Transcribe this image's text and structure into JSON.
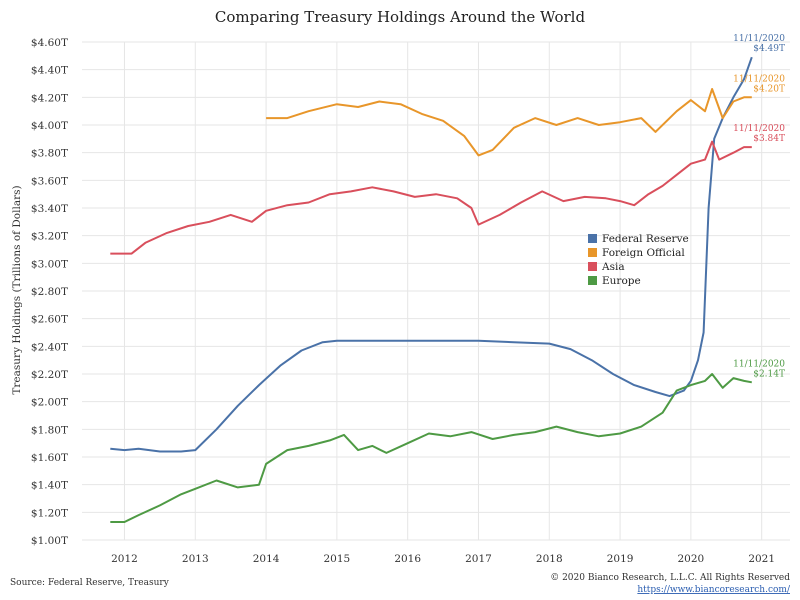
{
  "source": "Source: Federal Reserve, Treasury",
  "copyright": "© 2020 Bianco Research, L.L.C. All Rights Reserved",
  "link": "https://www.biancoresearch.com/",
  "chart_data": {
    "type": "line",
    "title": "Comparing Treasury Holdings Around the World",
    "xlabel": "",
    "ylabel": "Treasury Holdings (Trillions of Dollars)",
    "xlim": [
      2011.4,
      2021.4
    ],
    "ylim": [
      1.0,
      4.6
    ],
    "x_ticks": [
      2012,
      2013,
      2014,
      2015,
      2016,
      2017,
      2018,
      2019,
      2020,
      2021
    ],
    "y_ticks": [
      1.0,
      1.2,
      1.4,
      1.6,
      1.8,
      2.0,
      2.2,
      2.4,
      2.6,
      2.8,
      3.0,
      3.2,
      3.4,
      3.6,
      3.8,
      4.0,
      4.2,
      4.4,
      4.6
    ],
    "y_tick_labels": [
      "$1.00T",
      "$1.20T",
      "$1.40T",
      "$1.60T",
      "$1.80T",
      "$2.00T",
      "$2.20T",
      "$2.40T",
      "$2.60T",
      "$2.80T",
      "$3.00T",
      "$3.20T",
      "$3.40T",
      "$3.60T",
      "$3.80T",
      "$4.00T",
      "$4.20T",
      "$4.40T",
      "$4.60T"
    ],
    "grid": true,
    "legend_position": "center-right",
    "series": [
      {
        "name": "Federal Reserve",
        "color": "#4a72a8",
        "end_date": "11/11/2020",
        "end_label": "$4.49T",
        "points": [
          [
            2011.8,
            1.66
          ],
          [
            2012.0,
            1.65
          ],
          [
            2012.2,
            1.66
          ],
          [
            2012.5,
            1.64
          ],
          [
            2012.8,
            1.64
          ],
          [
            2013.0,
            1.65
          ],
          [
            2013.3,
            1.8
          ],
          [
            2013.6,
            1.97
          ],
          [
            2013.9,
            2.12
          ],
          [
            2014.2,
            2.26
          ],
          [
            2014.5,
            2.37
          ],
          [
            2014.8,
            2.43
          ],
          [
            2015.0,
            2.44
          ],
          [
            2015.5,
            2.44
          ],
          [
            2016.0,
            2.44
          ],
          [
            2016.5,
            2.44
          ],
          [
            2017.0,
            2.44
          ],
          [
            2017.5,
            2.43
          ],
          [
            2018.0,
            2.42
          ],
          [
            2018.3,
            2.38
          ],
          [
            2018.6,
            2.3
          ],
          [
            2018.9,
            2.2
          ],
          [
            2019.2,
            2.12
          ],
          [
            2019.5,
            2.07
          ],
          [
            2019.7,
            2.04
          ],
          [
            2019.9,
            2.08
          ],
          [
            2020.0,
            2.15
          ],
          [
            2020.1,
            2.3
          ],
          [
            2020.18,
            2.5
          ],
          [
            2020.25,
            3.4
          ],
          [
            2020.33,
            3.9
          ],
          [
            2020.45,
            4.05
          ],
          [
            2020.6,
            4.2
          ],
          [
            2020.75,
            4.33
          ],
          [
            2020.86,
            4.49
          ]
        ]
      },
      {
        "name": "Foreign Official",
        "color": "#e8962a",
        "end_date": "11/11/2020",
        "end_label": "$4.20T",
        "points": [
          [
            2014.0,
            4.05
          ],
          [
            2014.3,
            4.05
          ],
          [
            2014.6,
            4.1
          ],
          [
            2015.0,
            4.15
          ],
          [
            2015.3,
            4.13
          ],
          [
            2015.6,
            4.17
          ],
          [
            2015.9,
            4.15
          ],
          [
            2016.2,
            4.08
          ],
          [
            2016.5,
            4.03
          ],
          [
            2016.8,
            3.92
          ],
          [
            2017.0,
            3.78
          ],
          [
            2017.2,
            3.82
          ],
          [
            2017.5,
            3.98
          ],
          [
            2017.8,
            4.05
          ],
          [
            2018.1,
            4.0
          ],
          [
            2018.4,
            4.05
          ],
          [
            2018.7,
            4.0
          ],
          [
            2019.0,
            4.02
          ],
          [
            2019.3,
            4.05
          ],
          [
            2019.5,
            3.95
          ],
          [
            2019.8,
            4.1
          ],
          [
            2020.0,
            4.18
          ],
          [
            2020.2,
            4.1
          ],
          [
            2020.3,
            4.26
          ],
          [
            2020.45,
            4.05
          ],
          [
            2020.6,
            4.17
          ],
          [
            2020.75,
            4.2
          ],
          [
            2020.86,
            4.2
          ]
        ]
      },
      {
        "name": "Asia",
        "color": "#d94f5c",
        "end_date": "11/11/2020",
        "end_label": "$3.84T",
        "points": [
          [
            2011.8,
            3.07
          ],
          [
            2012.1,
            3.07
          ],
          [
            2012.3,
            3.15
          ],
          [
            2012.6,
            3.22
          ],
          [
            2012.9,
            3.27
          ],
          [
            2013.2,
            3.3
          ],
          [
            2013.5,
            3.35
          ],
          [
            2013.8,
            3.3
          ],
          [
            2014.0,
            3.38
          ],
          [
            2014.3,
            3.42
          ],
          [
            2014.6,
            3.44
          ],
          [
            2014.9,
            3.5
          ],
          [
            2015.2,
            3.52
          ],
          [
            2015.5,
            3.55
          ],
          [
            2015.8,
            3.52
          ],
          [
            2016.1,
            3.48
          ],
          [
            2016.4,
            3.5
          ],
          [
            2016.7,
            3.47
          ],
          [
            2016.9,
            3.4
          ],
          [
            2017.0,
            3.28
          ],
          [
            2017.3,
            3.35
          ],
          [
            2017.6,
            3.44
          ],
          [
            2017.9,
            3.52
          ],
          [
            2018.2,
            3.45
          ],
          [
            2018.5,
            3.48
          ],
          [
            2018.8,
            3.47
          ],
          [
            2019.0,
            3.45
          ],
          [
            2019.2,
            3.42
          ],
          [
            2019.4,
            3.5
          ],
          [
            2019.6,
            3.56
          ],
          [
            2019.8,
            3.64
          ],
          [
            2020.0,
            3.72
          ],
          [
            2020.2,
            3.75
          ],
          [
            2020.3,
            3.88
          ],
          [
            2020.4,
            3.75
          ],
          [
            2020.6,
            3.8
          ],
          [
            2020.75,
            3.84
          ],
          [
            2020.86,
            3.84
          ]
        ]
      },
      {
        "name": "Europe",
        "color": "#4e9a44",
        "end_date": "11/11/2020",
        "end_label": "$2.14T",
        "points": [
          [
            2011.8,
            1.13
          ],
          [
            2012.0,
            1.13
          ],
          [
            2012.2,
            1.18
          ],
          [
            2012.5,
            1.25
          ],
          [
            2012.8,
            1.33
          ],
          [
            2013.0,
            1.37
          ],
          [
            2013.3,
            1.43
          ],
          [
            2013.6,
            1.38
          ],
          [
            2013.9,
            1.4
          ],
          [
            2014.0,
            1.55
          ],
          [
            2014.3,
            1.65
          ],
          [
            2014.6,
            1.68
          ],
          [
            2014.9,
            1.72
          ],
          [
            2015.1,
            1.76
          ],
          [
            2015.3,
            1.65
          ],
          [
            2015.5,
            1.68
          ],
          [
            2015.7,
            1.63
          ],
          [
            2016.0,
            1.7
          ],
          [
            2016.3,
            1.77
          ],
          [
            2016.6,
            1.75
          ],
          [
            2016.9,
            1.78
          ],
          [
            2017.2,
            1.73
          ],
          [
            2017.5,
            1.76
          ],
          [
            2017.8,
            1.78
          ],
          [
            2018.1,
            1.82
          ],
          [
            2018.4,
            1.78
          ],
          [
            2018.7,
            1.75
          ],
          [
            2019.0,
            1.77
          ],
          [
            2019.3,
            1.82
          ],
          [
            2019.6,
            1.92
          ],
          [
            2019.8,
            2.08
          ],
          [
            2020.0,
            2.12
          ],
          [
            2020.2,
            2.15
          ],
          [
            2020.3,
            2.2
          ],
          [
            2020.45,
            2.1
          ],
          [
            2020.6,
            2.17
          ],
          [
            2020.75,
            2.15
          ],
          [
            2020.86,
            2.14
          ]
        ]
      }
    ]
  }
}
